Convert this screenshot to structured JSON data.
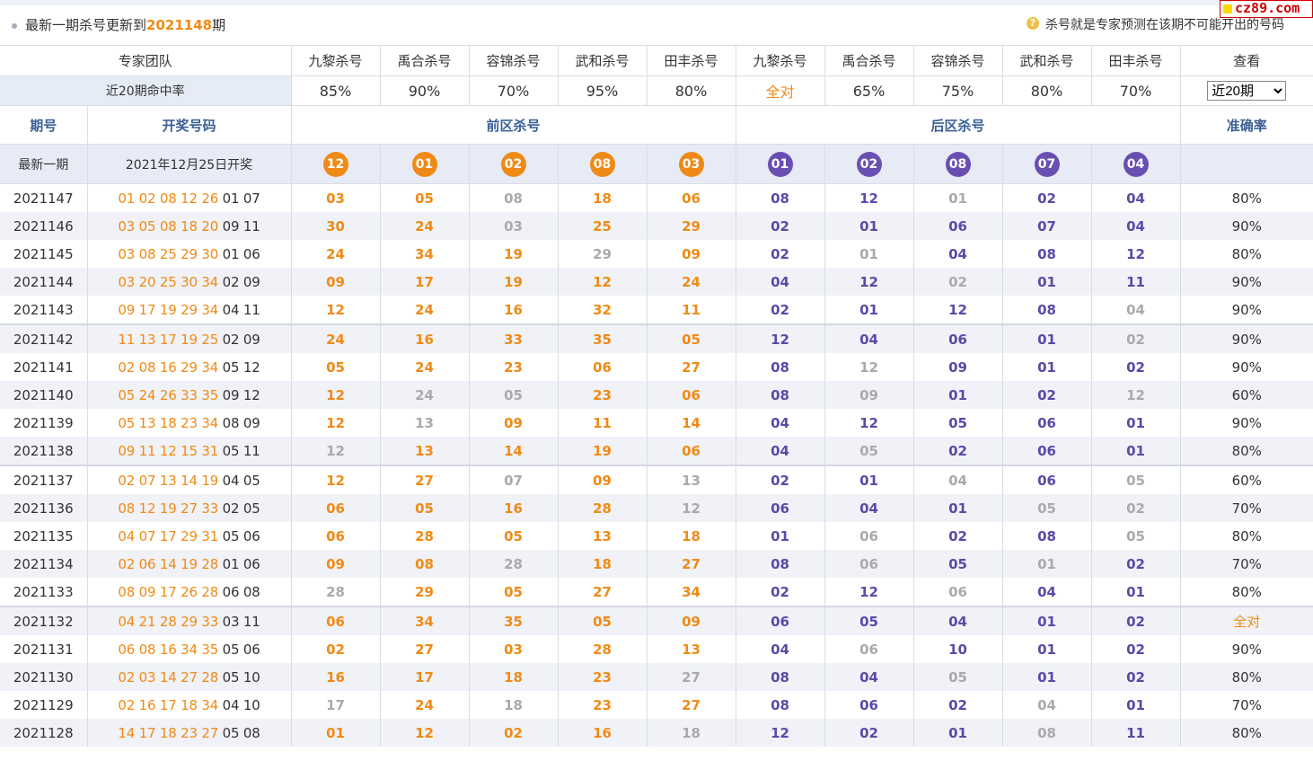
{
  "header": {
    "title_prefix": "最新一期杀号更新到",
    "latest_issue": "2021148",
    "title_suffix": "期",
    "help_icon": "?",
    "tip": "杀号就是专家预测在该期不可能开出的号码",
    "brand": "cz89.com"
  },
  "team_row": {
    "label": "专家团队",
    "experts": [
      "九黎杀号",
      "禹合杀号",
      "容锦杀号",
      "武和杀号",
      "田丰杀号",
      "九黎杀号",
      "禹合杀号",
      "容锦杀号",
      "武和杀号",
      "田丰杀号"
    ],
    "view": "查看"
  },
  "rate_row": {
    "label": "近20期命中率",
    "rates": [
      "85%",
      "90%",
      "70%",
      "95%",
      "80%",
      "全对",
      "65%",
      "75%",
      "80%",
      "70%"
    ],
    "select_value": "近20期"
  },
  "section_row": {
    "issue": "期号",
    "draw": "开奖号码",
    "front": "前区杀号",
    "back": "后区杀号",
    "accuracy": "准确率"
  },
  "latest_row": {
    "label": "最新一期",
    "draw_date": "2021年12月25日开奖",
    "front_kills": [
      "12",
      "01",
      "02",
      "08",
      "03"
    ],
    "back_kills": [
      "01",
      "02",
      "08",
      "07",
      "04"
    ]
  },
  "rows": [
    {
      "issue": "2021147",
      "front": "01 02 08 12 26",
      "back": "01 07",
      "kills": [
        "03",
        "05",
        "08",
        "18",
        "06",
        "08",
        "12",
        "01",
        "02",
        "04"
      ],
      "miss": [
        2,
        7
      ],
      "acc": "80%"
    },
    {
      "issue": "2021146",
      "front": "03 05 08 18 20",
      "back": "09 11",
      "kills": [
        "30",
        "24",
        "03",
        "25",
        "29",
        "02",
        "01",
        "06",
        "07",
        "04"
      ],
      "miss": [
        2
      ],
      "acc": "90%"
    },
    {
      "issue": "2021145",
      "front": "03 08 25 29 30",
      "back": "01 06",
      "kills": [
        "24",
        "34",
        "19",
        "29",
        "09",
        "02",
        "01",
        "04",
        "08",
        "12"
      ],
      "miss": [
        3,
        6
      ],
      "acc": "80%"
    },
    {
      "issue": "2021144",
      "front": "03 20 25 30 34",
      "back": "02 09",
      "kills": [
        "09",
        "17",
        "19",
        "12",
        "24",
        "04",
        "12",
        "02",
        "01",
        "11"
      ],
      "miss": [
        7
      ],
      "acc": "90%"
    },
    {
      "issue": "2021143",
      "front": "09 17 19 29 34",
      "back": "04 11",
      "kills": [
        "12",
        "24",
        "16",
        "32",
        "11",
        "02",
        "01",
        "12",
        "08",
        "04"
      ],
      "miss": [
        9
      ],
      "acc": "90%"
    },
    {
      "issue": "2021142",
      "front": "11 13 17 19 25",
      "back": "02 09",
      "kills": [
        "24",
        "16",
        "33",
        "35",
        "05",
        "12",
        "04",
        "06",
        "01",
        "02"
      ],
      "miss": [
        9
      ],
      "acc": "90%"
    },
    {
      "issue": "2021141",
      "front": "02 08 16 29 34",
      "back": "05 12",
      "kills": [
        "05",
        "24",
        "23",
        "06",
        "27",
        "08",
        "12",
        "09",
        "01",
        "02"
      ],
      "miss": [
        6
      ],
      "acc": "90%"
    },
    {
      "issue": "2021140",
      "front": "05 24 26 33 35",
      "back": "09 12",
      "kills": [
        "12",
        "24",
        "05",
        "23",
        "06",
        "08",
        "09",
        "01",
        "02",
        "12"
      ],
      "miss": [
        1,
        2,
        6,
        9
      ],
      "acc": "60%"
    },
    {
      "issue": "2021139",
      "front": "05 13 18 23 34",
      "back": "08 09",
      "kills": [
        "12",
        "13",
        "09",
        "11",
        "14",
        "04",
        "12",
        "05",
        "06",
        "01"
      ],
      "miss": [
        1
      ],
      "acc": "90%"
    },
    {
      "issue": "2021138",
      "front": "09 11 12 15 31",
      "back": "05 11",
      "kills": [
        "12",
        "13",
        "14",
        "19",
        "06",
        "04",
        "05",
        "02",
        "06",
        "01"
      ],
      "miss": [
        0,
        6
      ],
      "acc": "80%"
    },
    {
      "issue": "2021137",
      "front": "02 07 13 14 19",
      "back": "04 05",
      "kills": [
        "12",
        "27",
        "07",
        "09",
        "13",
        "02",
        "01",
        "04",
        "06",
        "05"
      ],
      "miss": [
        2,
        4,
        7,
        9
      ],
      "acc": "60%"
    },
    {
      "issue": "2021136",
      "front": "08 12 19 27 33",
      "back": "02 05",
      "kills": [
        "06",
        "05",
        "16",
        "28",
        "12",
        "06",
        "04",
        "01",
        "05",
        "02"
      ],
      "miss": [
        4,
        8,
        9
      ],
      "acc": "70%"
    },
    {
      "issue": "2021135",
      "front": "04 07 17 29 31",
      "back": "05 06",
      "kills": [
        "06",
        "28",
        "05",
        "13",
        "18",
        "01",
        "06",
        "02",
        "08",
        "05"
      ],
      "miss": [
        6,
        9
      ],
      "acc": "80%"
    },
    {
      "issue": "2021134",
      "front": "02 06 14 19 28",
      "back": "01 06",
      "kills": [
        "09",
        "08",
        "28",
        "18",
        "27",
        "08",
        "06",
        "05",
        "01",
        "02"
      ],
      "miss": [
        2,
        6,
        8
      ],
      "acc": "70%"
    },
    {
      "issue": "2021133",
      "front": "08 09 17 26 28",
      "back": "06 08",
      "kills": [
        "28",
        "29",
        "05",
        "27",
        "34",
        "02",
        "12",
        "06",
        "04",
        "01"
      ],
      "miss": [
        0,
        7
      ],
      "acc": "80%"
    },
    {
      "issue": "2021132",
      "front": "04 21 28 29 33",
      "back": "03 11",
      "kills": [
        "06",
        "34",
        "35",
        "05",
        "09",
        "06",
        "05",
        "04",
        "01",
        "02"
      ],
      "miss": [],
      "acc": "全对"
    },
    {
      "issue": "2021131",
      "front": "06 08 16 34 35",
      "back": "05 06",
      "kills": [
        "02",
        "27",
        "03",
        "28",
        "13",
        "04",
        "06",
        "10",
        "01",
        "02"
      ],
      "miss": [
        6
      ],
      "acc": "90%"
    },
    {
      "issue": "2021130",
      "front": "02 03 14 27 28",
      "back": "05 10",
      "kills": [
        "16",
        "17",
        "18",
        "23",
        "27",
        "08",
        "04",
        "05",
        "01",
        "02"
      ],
      "miss": [
        4,
        7
      ],
      "acc": "80%"
    },
    {
      "issue": "2021129",
      "front": "02 16 17 18 34",
      "back": "04 10",
      "kills": [
        "17",
        "24",
        "18",
        "23",
        "27",
        "08",
        "06",
        "02",
        "04",
        "01"
      ],
      "miss": [
        0,
        2,
        8
      ],
      "acc": "70%"
    },
    {
      "issue": "2021128",
      "front": "14 17 18 23 27",
      "back": "05 08",
      "kills": [
        "01",
        "12",
        "02",
        "16",
        "18",
        "12",
        "02",
        "01",
        "08",
        "11"
      ],
      "miss": [
        4,
        8
      ],
      "acc": "80%"
    }
  ],
  "colors": {
    "front": "#f08a16",
    "back": "#6a4fb3",
    "miss": "#aaaaaa",
    "header_text": "#3a5f95"
  }
}
